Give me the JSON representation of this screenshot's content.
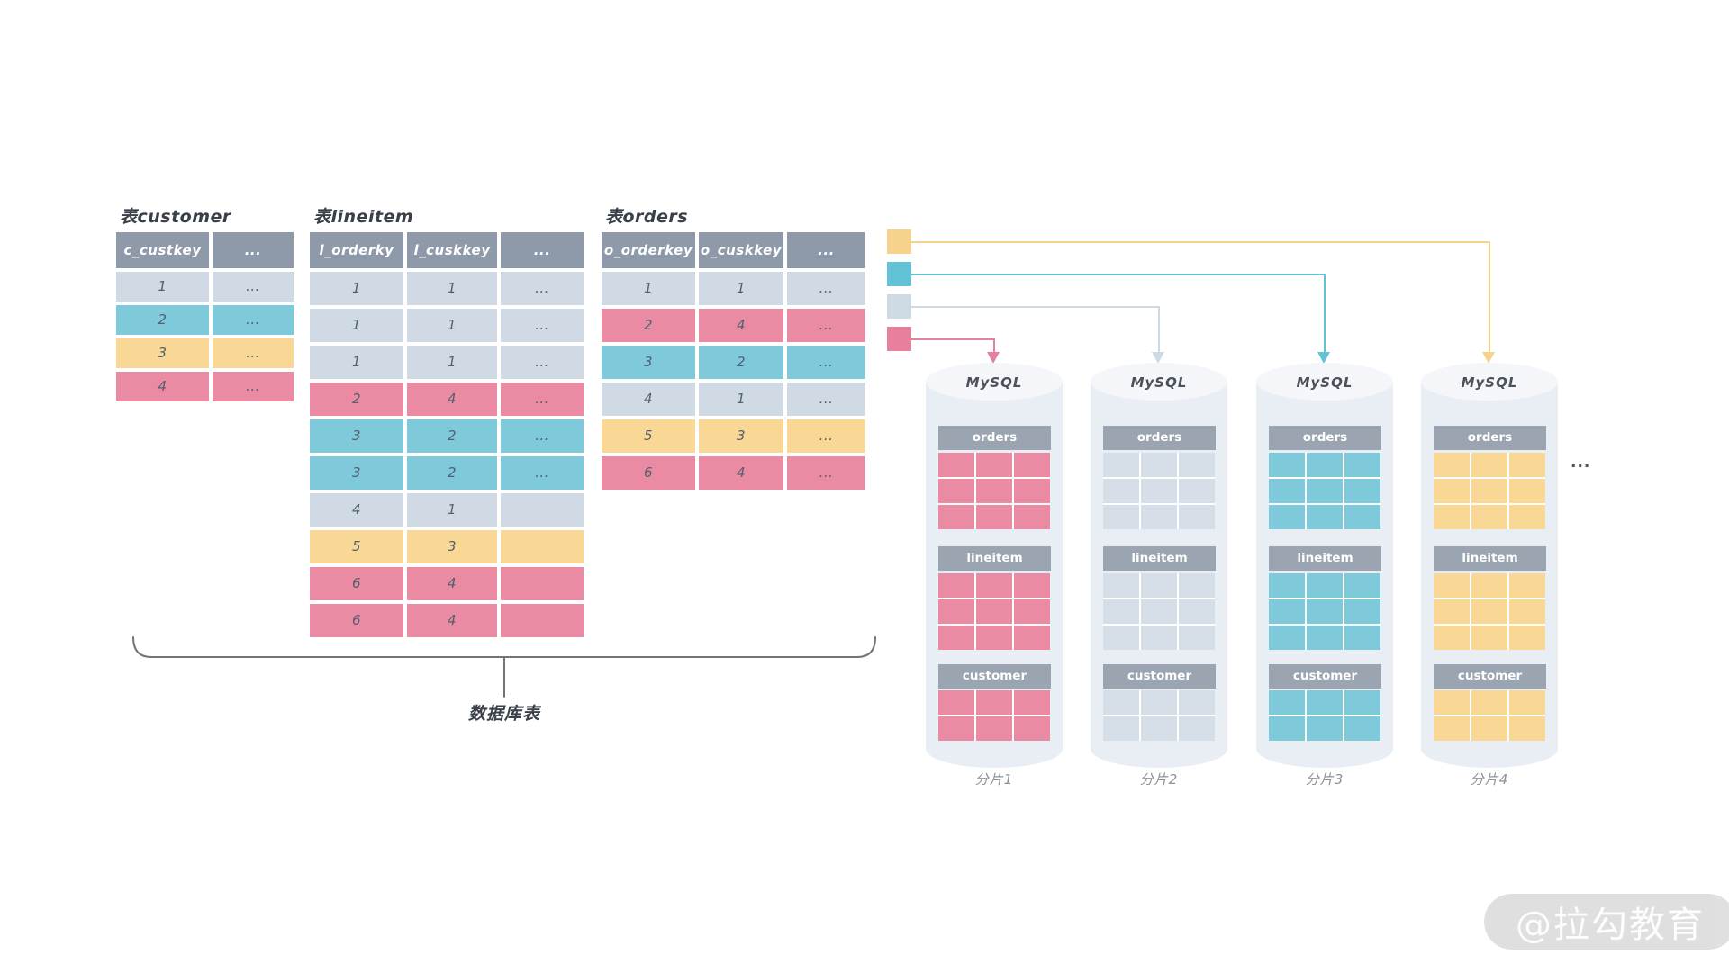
{
  "colors": {
    "header_bg": "#8e9aaa",
    "header_text": "#ffffff",
    "cell_text": "#53606d",
    "row_gray": "#cfdae4",
    "row_teal": "#7ec9da",
    "row_yellow": "#f9d794",
    "row_pink": "#ea8ba3",
    "mini_gray": "#d6dfe8",
    "mini_header_bg": "#9aa5b1",
    "legend_yellow": "#f7d28c",
    "legend_teal": "#62c3d7",
    "legend_gray": "#cdd9e3",
    "legend_pink": "#e77f9d",
    "cylinder_body": "#e9edf4",
    "cylinder_top": "#f4f6fa",
    "title_text": "#3a4048",
    "shard_label_text": "#8b9198",
    "mysql_text": "#4b515b",
    "bracket_stroke": "#70757c",
    "watermark_bg": "#d9d9d9",
    "watermark_text": "#fdfdfd"
  },
  "tables": [
    {
      "id": "customer",
      "title": "表customer",
      "columns": [
        "c_custkey",
        "..."
      ],
      "rows": [
        {
          "color": "gray",
          "cells": [
            "1",
            "..."
          ]
        },
        {
          "color": "teal",
          "cells": [
            "2",
            "..."
          ]
        },
        {
          "color": "yellow",
          "cells": [
            "3",
            "..."
          ]
        },
        {
          "color": "pink",
          "cells": [
            "4",
            "..."
          ]
        }
      ]
    },
    {
      "id": "lineitem",
      "title": "表lineitem",
      "columns": [
        "l_orderky",
        "l_cuskkey",
        "..."
      ],
      "rows": [
        {
          "color": "gray",
          "cells": [
            "1",
            "1",
            "..."
          ]
        },
        {
          "color": "gray",
          "cells": [
            "1",
            "1",
            "..."
          ]
        },
        {
          "color": "gray",
          "cells": [
            "1",
            "1",
            "..."
          ]
        },
        {
          "color": "pink",
          "cells": [
            "2",
            "4",
            "..."
          ]
        },
        {
          "color": "teal",
          "cells": [
            "3",
            "2",
            "..."
          ]
        },
        {
          "color": "teal",
          "cells": [
            "3",
            "2",
            "..."
          ]
        },
        {
          "color": "gray",
          "cells": [
            "4",
            "1",
            ""
          ]
        },
        {
          "color": "yellow",
          "cells": [
            "5",
            "3",
            ""
          ]
        },
        {
          "color": "pink",
          "cells": [
            "6",
            "4",
            ""
          ]
        },
        {
          "color": "pink",
          "cells": [
            "6",
            "4",
            ""
          ]
        }
      ]
    },
    {
      "id": "orders",
      "title": "表orders",
      "columns": [
        "o_orderkey",
        "o_cuskkey",
        "..."
      ],
      "rows": [
        {
          "color": "gray",
          "cells": [
            "1",
            "1",
            "..."
          ]
        },
        {
          "color": "pink",
          "cells": [
            "2",
            "4",
            "..."
          ]
        },
        {
          "color": "teal",
          "cells": [
            "3",
            "2",
            "..."
          ]
        },
        {
          "color": "gray",
          "cells": [
            "4",
            "1",
            "..."
          ]
        },
        {
          "color": "yellow",
          "cells": [
            "5",
            "3",
            "..."
          ]
        },
        {
          "color": "pink",
          "cells": [
            "6",
            "4",
            "..."
          ]
        }
      ]
    }
  ],
  "bracket_label": "数据库表",
  "legend": [
    {
      "color": "yellow",
      "target_shard": "分片4"
    },
    {
      "color": "teal",
      "target_shard": "分片3"
    },
    {
      "color": "gray",
      "target_shard": "分片2"
    },
    {
      "color": "pink",
      "target_shard": "分片1"
    }
  ],
  "shards": [
    {
      "name": "分片1",
      "db_label": "MySQL",
      "color": "pink",
      "tables": [
        {
          "label": "orders",
          "rows": 3,
          "cols": 3
        },
        {
          "label": "lineitem",
          "rows": 3,
          "cols": 3
        },
        {
          "label": "customer",
          "rows": 2,
          "cols": 3
        }
      ]
    },
    {
      "name": "分片2",
      "db_label": "MySQL",
      "color": "gray",
      "tables": [
        {
          "label": "orders",
          "rows": 3,
          "cols": 3
        },
        {
          "label": "lineitem",
          "rows": 3,
          "cols": 3
        },
        {
          "label": "customer",
          "rows": 2,
          "cols": 3
        }
      ]
    },
    {
      "name": "分片3",
      "db_label": "MySQL",
      "color": "teal",
      "tables": [
        {
          "label": "orders",
          "rows": 3,
          "cols": 3
        },
        {
          "label": "lineitem",
          "rows": 3,
          "cols": 3
        },
        {
          "label": "customer",
          "rows": 2,
          "cols": 3
        }
      ]
    },
    {
      "name": "分片4",
      "db_label": "MySQL",
      "color": "yellow",
      "tables": [
        {
          "label": "orders",
          "rows": 3,
          "cols": 3
        },
        {
          "label": "lineitem",
          "rows": 3,
          "cols": 3
        },
        {
          "label": "customer",
          "rows": 2,
          "cols": 3
        }
      ]
    }
  ],
  "more_indicator": "...",
  "watermark": {
    "text": "@拉勾教育"
  }
}
